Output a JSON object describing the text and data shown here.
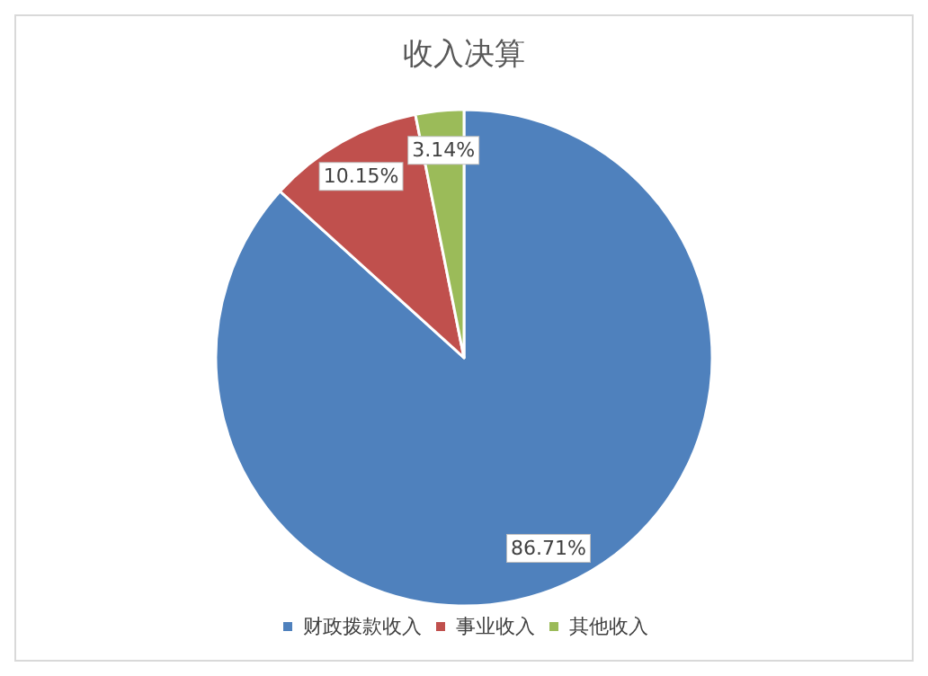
{
  "chart_data": {
    "type": "pie",
    "title": "收入决算",
    "categories": [
      "财政拨款收入",
      "事业收入",
      "其他收入"
    ],
    "values": [
      86.71,
      10.15,
      3.14
    ],
    "colors": [
      "#4f81bd",
      "#c0504d",
      "#9bbb59"
    ],
    "value_labels": [
      "86.71%",
      "10.15%",
      "3.14%"
    ],
    "legend": "bottom"
  }
}
